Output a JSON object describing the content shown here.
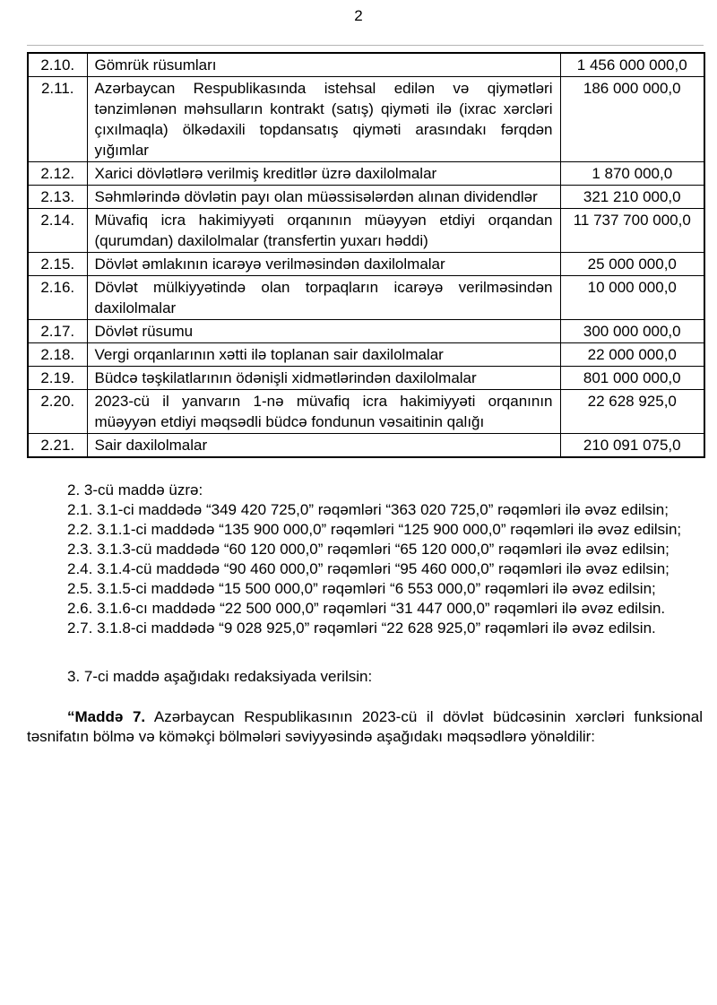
{
  "page": {
    "number": "2"
  },
  "table": {
    "rows": [
      {
        "num": "2.10.",
        "text": "Gömrük rüsumları",
        "value": "1 456 000 000,0"
      },
      {
        "num": "2.11.",
        "text": "Azərbaycan Respublikasında istehsal edilən və qiymətləri tənzimlənən məhsulların kontrakt (satış) qiyməti ilə (ixrac xərcləri çıxılmaqla) ölkədaxili topdansatış qiyməti arasındakı fərqdən yığımlar",
        "value": "186 000 000,0"
      },
      {
        "num": "2.12.",
        "text": "Xarici dövlətlərə verilmiş kreditlər üzrə daxilolmalar",
        "value": "1 870 000,0"
      },
      {
        "num": "2.13.",
        "text": "Səhmlərində dövlətin payı olan müəssisələrdən alınan dividendlər",
        "value": "321 210 000,0"
      },
      {
        "num": "2.14.",
        "text": "Müvafiq icra hakimiyyəti orqanının müəyyən etdiyi orqandan (qurumdan) daxilolmalar (transfertin yuxarı həddi)",
        "value": "11 737 700 000,0"
      },
      {
        "num": "2.15.",
        "text": "Dövlət əmlakının icarəyə verilməsindən daxilolmalar",
        "value": "25 000 000,0"
      },
      {
        "num": "2.16.",
        "text": "Dövlət mülkiyyətində olan torpaqların icarəyə verilməsindən daxilolmalar",
        "value": "10 000 000,0"
      },
      {
        "num": "2.17.",
        "text": "Dövlət rüsumu",
        "value": "300 000 000,0"
      },
      {
        "num": "2.18.",
        "text": "Vergi orqanlarının xətti ilə toplanan sair daxilolmalar",
        "value": "22 000 000,0"
      },
      {
        "num": "2.19.",
        "text": "Büdcə təşkilatlarının ödənişli xidmətlərindən daxilolmalar",
        "value": "801 000 000,0"
      },
      {
        "num": "2.20.",
        "text": "2023-cü il yanvarın 1-nə müvafiq icra hakimiyyəti orqanının müəyyən etdiyi məqsədli büdcə fondunun vəsaitinin qalığı",
        "value": "22 628 925,0"
      },
      {
        "num": "2.21.",
        "text": "Sair daxilolmalar",
        "value": "210 091 075,0"
      }
    ]
  },
  "sections": {
    "s2_heading": "2. 3-cü maddə üzrə:",
    "amendments": [
      "2.1.  3.1-ci maddədə “349 420 725,0” rəqəmləri “363 020 725,0” rəqəmləri ilə əvəz edilsin;",
      "2.2.  3.1.1-ci maddədə “135 900 000,0” rəqəmləri “125 900 000,0” rəqəmləri ilə əvəz edilsin;",
      "2.3.  3.1.3-cü maddədə “60 120 000,0” rəqəmləri “65 120 000,0” rəqəmləri ilə əvəz edilsin;",
      "2.4.  3.1.4-cü maddədə “90 460 000,0” rəqəmləri “95 460 000,0” rəqəmləri ilə əvəz edilsin;",
      "2.5.  3.1.5-ci maddədə “15 500 000,0” rəqəmləri “6 553 000,0” rəqəmləri ilə əvəz edilsin;",
      "2.6.  3.1.6-cı maddədə “22 500 000,0” rəqəmləri “31 447 000,0” rəqəmləri ilə əvəz edilsin.",
      "2.7. 3.1.8-ci maddədə “9 028 925,0” rəqəmləri “22 628 925,0” rəqəmləri ilə əvəz edilsin."
    ],
    "s3_heading": "3. 7-ci maddə aşağıdakı redaksiyada verilsin:",
    "madde7_bold": "“Maddə 7.",
    "madde7_rest": " Azərbaycan Respublikasının 2023-cü il dövlət büdcəsinin xərcləri funksional təsnifatın bölmə və köməkçi bölmələri səviyyəsində aşağıdakı məqsədlərə yönəldilir:"
  }
}
